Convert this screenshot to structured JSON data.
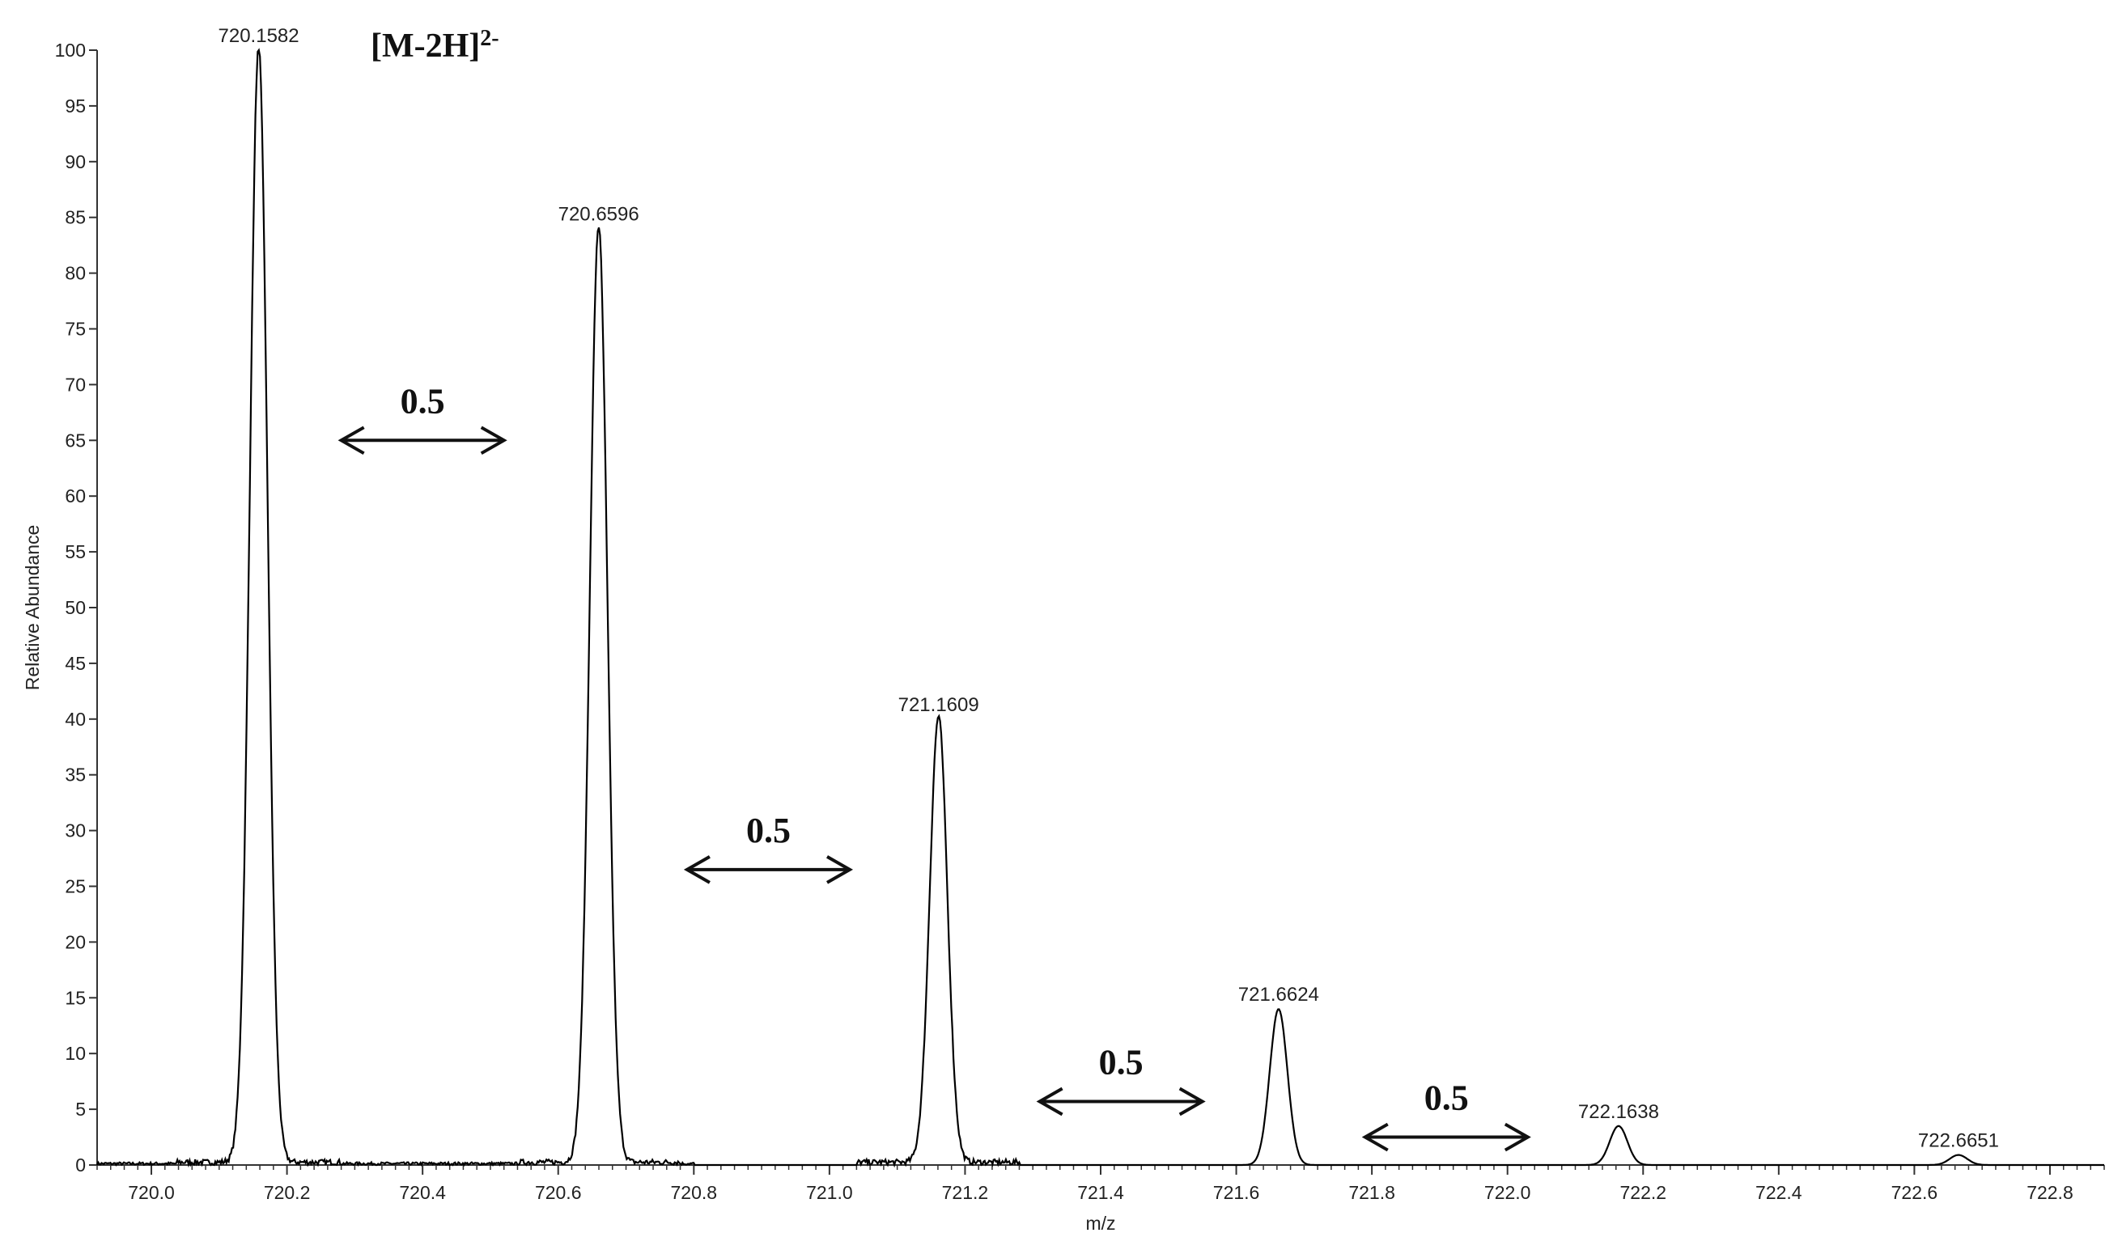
{
  "chart_data": {
    "type": "line",
    "subtype": "mass-spectrum",
    "xlabel": "m/z",
    "ylabel": "Relative Abundance",
    "xlim": [
      719.92,
      722.88
    ],
    "ylim": [
      0,
      100
    ],
    "x_ticks": [
      "720.0",
      "720.2",
      "720.4",
      "720.6",
      "720.8",
      "721.0",
      "721.2",
      "721.4",
      "721.6",
      "721.8",
      "722.0",
      "722.2",
      "722.4",
      "722.6",
      "722.8"
    ],
    "y_ticks": [
      "0",
      "5",
      "10",
      "15",
      "20",
      "25",
      "30",
      "35",
      "40",
      "45",
      "50",
      "55",
      "60",
      "65",
      "70",
      "75",
      "80",
      "85",
      "90",
      "95",
      "100"
    ],
    "ion_label": {
      "main": "[M-2H]",
      "sup": "2-"
    },
    "peaks": [
      {
        "mz": 720.1582,
        "intensity": 100,
        "label": "720.1582"
      },
      {
        "mz": 720.6596,
        "intensity": 84,
        "label": "720.6596"
      },
      {
        "mz": 721.1609,
        "intensity": 40,
        "label": "721.1609"
      },
      {
        "mz": 721.6624,
        "intensity": 14,
        "label": "721.6624"
      },
      {
        "mz": 722.1638,
        "intensity": 3.5,
        "label": "722.1638"
      },
      {
        "mz": 722.6651,
        "intensity": 0.9,
        "label": "722.6651"
      }
    ],
    "spacing_annotations": [
      {
        "label": "0.5",
        "from_mz": 720.28,
        "to_mz": 720.52,
        "level": 65
      },
      {
        "label": "0.5",
        "from_mz": 720.79,
        "to_mz": 721.03,
        "level": 26.5
      },
      {
        "label": "0.5",
        "from_mz": 721.31,
        "to_mz": 721.55,
        "level": 5.7
      },
      {
        "label": "0.5",
        "from_mz": 721.79,
        "to_mz": 722.03,
        "level": 2.5
      }
    ],
    "colors": {
      "line": "#000000",
      "axis": "#333333",
      "text": "#222222"
    }
  }
}
